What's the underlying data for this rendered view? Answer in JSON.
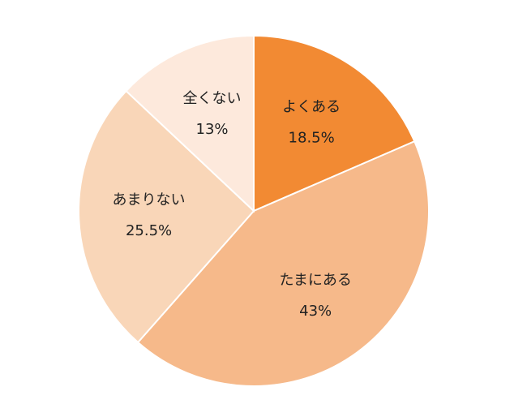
{
  "chart_data": {
    "type": "pie",
    "categories": [
      "よくある",
      "たまにある",
      "あまりない",
      "全くない"
    ],
    "values": [
      18.5,
      43,
      25.5,
      13
    ],
    "value_labels": [
      "18.5%",
      "43%",
      "25.5%",
      "13%"
    ],
    "colors": [
      "#f28a33",
      "#f6b98a",
      "#f9d6b8",
      "#fde9dc"
    ]
  }
}
